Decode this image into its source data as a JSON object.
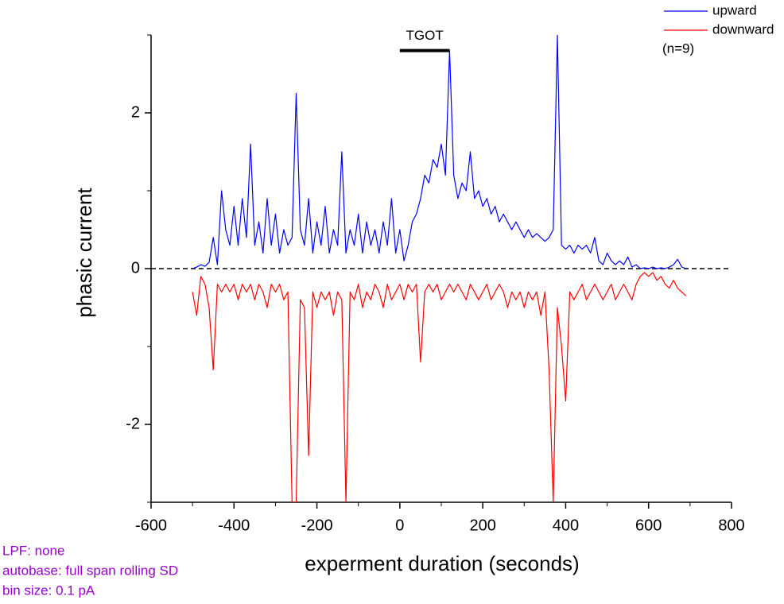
{
  "chart_data": {
    "type": "line",
    "xlabel": "experment duration (seconds)",
    "ylabel": "phasic current",
    "x": [
      -500,
      -490,
      -480,
      -470,
      -460,
      -450,
      -440,
      -430,
      -420,
      -410,
      -400,
      -390,
      -380,
      -370,
      -360,
      -350,
      -340,
      -330,
      -320,
      -310,
      -300,
      -290,
      -280,
      -270,
      -260,
      -250,
      -240,
      -230,
      -220,
      -210,
      -200,
      -190,
      -180,
      -170,
      -160,
      -150,
      -140,
      -130,
      -120,
      -110,
      -100,
      -90,
      -80,
      -70,
      -60,
      -50,
      -40,
      -30,
      -20,
      -10,
      0,
      10,
      20,
      30,
      40,
      50,
      60,
      70,
      80,
      90,
      100,
      110,
      120,
      130,
      140,
      150,
      160,
      170,
      180,
      190,
      200,
      210,
      220,
      230,
      240,
      250,
      260,
      270,
      280,
      290,
      300,
      310,
      320,
      330,
      340,
      350,
      360,
      370,
      380,
      390,
      400,
      410,
      420,
      430,
      440,
      450,
      460,
      470,
      480,
      490,
      500,
      510,
      520,
      530,
      540,
      550,
      560,
      570,
      580,
      590,
      600,
      610,
      620,
      630,
      640,
      650,
      660,
      670,
      680,
      690
    ],
    "series": [
      {
        "name": "upward",
        "color": "#0000ff",
        "values": [
          0,
          0.02,
          0.05,
          0.03,
          0.08,
          0.4,
          0.05,
          1.0,
          0.5,
          0.3,
          0.8,
          0.3,
          0.9,
          0.4,
          1.6,
          0.3,
          0.6,
          0.2,
          0.9,
          0.3,
          0.7,
          0.2,
          0.5,
          0.3,
          0.4,
          2.25,
          0.5,
          0.3,
          0.9,
          0.2,
          0.6,
          0.3,
          0.8,
          0.2,
          0.5,
          0.3,
          1.5,
          0.2,
          0.5,
          0.3,
          0.7,
          0.2,
          0.6,
          0.3,
          0.5,
          0.2,
          0.6,
          0.3,
          0.9,
          0.2,
          0.5,
          0.1,
          0.3,
          0.6,
          0.7,
          0.9,
          1.2,
          1.1,
          1.4,
          1.3,
          1.6,
          1.2,
          2.8,
          1.2,
          0.9,
          1.1,
          1.0,
          1.5,
          0.9,
          1.0,
          0.8,
          0.9,
          0.7,
          0.8,
          0.6,
          0.7,
          0.6,
          0.5,
          0.6,
          0.5,
          0.4,
          0.5,
          0.4,
          0.45,
          0.4,
          0.35,
          0.4,
          0.5,
          3,
          0.3,
          0.25,
          0.3,
          0.2,
          0.3,
          0.25,
          0.3,
          0.2,
          0.4,
          0.1,
          0.05,
          0.2,
          0.1,
          0.05,
          0.1,
          0.05,
          0.15,
          0.02,
          0.05,
          0,
          0.01,
          0,
          0.02,
          0,
          0.01,
          0,
          0.02,
          0.05,
          0.12,
          0.02,
          0
        ]
      },
      {
        "name": "downward",
        "color": "#ff0000",
        "values": [
          -0.3,
          -0.6,
          -0.1,
          -0.2,
          -0.5,
          -1.3,
          -0.2,
          -0.3,
          -0.2,
          -0.3,
          -0.2,
          -0.4,
          -0.2,
          -0.3,
          -0.2,
          -0.4,
          -0.2,
          -0.3,
          -0.5,
          -0.2,
          -0.3,
          -0.2,
          -0.4,
          -0.3,
          -3,
          -3,
          -0.4,
          -0.5,
          -2.4,
          -0.3,
          -0.5,
          -0.3,
          -0.4,
          -0.3,
          -0.6,
          -0.3,
          -0.4,
          -3,
          -0.3,
          -0.4,
          -0.2,
          -0.5,
          -0.3,
          -0.4,
          -0.2,
          -0.3,
          -0.5,
          -0.2,
          -0.4,
          -0.3,
          -0.2,
          -0.4,
          -0.2,
          -0.3,
          -0.2,
          -1.2,
          -0.3,
          -0.2,
          -0.3,
          -0.2,
          -0.4,
          -0.3,
          -0.2,
          -0.3,
          -0.2,
          -0.3,
          -0.4,
          -0.2,
          -0.3,
          -0.4,
          -0.3,
          -0.2,
          -0.4,
          -0.3,
          -0.2,
          -0.3,
          -0.5,
          -0.3,
          -0.4,
          -0.3,
          -0.5,
          -0.3,
          -0.4,
          -0.3,
          -0.6,
          -0.3,
          -1.3,
          -3,
          -0.5,
          -1.0,
          -1.7,
          -0.3,
          -0.4,
          -0.3,
          -0.2,
          -0.4,
          -0.3,
          -0.2,
          -0.3,
          -0.4,
          -0.3,
          -0.2,
          -0.4,
          -0.3,
          -0.2,
          -0.3,
          -0.4,
          -0.2,
          -0.1,
          -0.05,
          -0.1,
          -0.05,
          -0.15,
          -0.1,
          -0.2,
          -0.25,
          -0.15,
          -0.25,
          -0.3,
          -0.35
        ]
      }
    ],
    "xlim": [
      -600,
      800
    ],
    "ylim": [
      -3,
      3
    ],
    "xticks": [
      -600,
      -400,
      -200,
      0,
      200,
      400,
      600,
      800
    ],
    "yticks": [
      -2,
      0,
      2
    ],
    "zero_line": true,
    "legend": "upper right",
    "legend_note": "(n=9)",
    "annotation": {
      "text": "TGOT",
      "x": [
        0,
        120
      ],
      "y": 2.8
    },
    "notes": [
      "LPF: none",
      "autobase: full span rolling SD",
      "bin size: 0.1 pA"
    ]
  }
}
